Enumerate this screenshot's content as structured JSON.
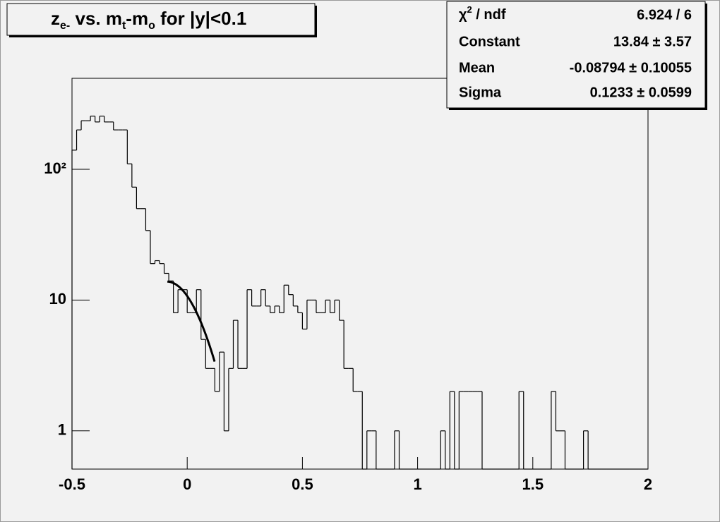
{
  "chart_data": {
    "type": "histogram",
    "title_parts": [
      {
        "text": "z"
      },
      {
        "text": "e-",
        "sub": true
      },
      {
        "text": " vs. m"
      },
      {
        "text": "t",
        "sub": true
      },
      {
        "text": "-m"
      },
      {
        "text": "o",
        "sub": true
      },
      {
        "text": " for |y|<0.1"
      }
    ],
    "bins": [
      -0.5,
      -0.48,
      -0.46,
      -0.44,
      -0.42,
      -0.4,
      -0.38,
      -0.36,
      -0.34,
      -0.32,
      -0.3,
      -0.28,
      -0.26,
      -0.24,
      -0.22,
      -0.2,
      -0.18,
      -0.16,
      -0.14,
      -0.12,
      -0.1,
      -0.08,
      -0.06,
      -0.04,
      -0.02,
      0,
      0.02,
      0.04,
      0.06,
      0.08,
      0.1,
      0.12,
      0.14,
      0.16,
      0.18,
      0.2,
      0.22,
      0.24,
      0.26,
      0.28,
      0.3,
      0.32,
      0.34,
      0.36,
      0.38,
      0.4,
      0.42,
      0.44,
      0.46,
      0.48,
      0.5,
      0.52,
      0.54,
      0.56,
      0.58,
      0.6,
      0.62,
      0.64,
      0.66,
      0.68,
      0.7,
      0.72,
      0.74,
      0.76,
      0.78,
      0.8,
      0.82,
      0.84,
      0.86,
      0.88,
      0.9,
      0.92,
      0.94,
      0.96,
      0.98,
      1,
      1.02,
      1.04,
      1.06,
      1.08,
      1.1,
      1.12,
      1.14,
      1.16,
      1.18,
      1.2,
      1.22,
      1.24,
      1.26,
      1.28,
      1.3,
      1.32,
      1.34,
      1.36,
      1.38,
      1.4,
      1.42,
      1.44,
      1.46,
      1.48,
      1.5,
      1.52,
      1.54,
      1.56,
      1.58,
      1.6,
      1.62,
      1.64,
      1.66,
      1.68,
      1.7,
      1.72,
      1.74,
      1.76,
      1.78,
      1.8,
      1.82,
      1.84,
      1.86,
      1.88,
      1.9,
      1.92,
      1.94,
      1.96,
      1.98,
      2
    ],
    "values": [
      140,
      200,
      235,
      235,
      255,
      230,
      255,
      230,
      230,
      200,
      200,
      200,
      110,
      73,
      50,
      50,
      34,
      19,
      20,
      19,
      16,
      14,
      8,
      12,
      12,
      8,
      8,
      12,
      5,
      3,
      3,
      2,
      4,
      1,
      3,
      7,
      3,
      3,
      12,
      9,
      9,
      12,
      9,
      8,
      9,
      8,
      13,
      11,
      9,
      8,
      6,
      10,
      10,
      8,
      8,
      10,
      8,
      10,
      7,
      3,
      3,
      2,
      2,
      0,
      1,
      1,
      0,
      0,
      0,
      0,
      1,
      0,
      0,
      0,
      0,
      0,
      0,
      0,
      0,
      0,
      1,
      0,
      2,
      0,
      2,
      2,
      2,
      2,
      2,
      0,
      0,
      0,
      0,
      0,
      0,
      0,
      0,
      2,
      0,
      0,
      0,
      0,
      0,
      0,
      2,
      1,
      1,
      0,
      0,
      0,
      0,
      1,
      0,
      0,
      0,
      0,
      0,
      0,
      0,
      0,
      0,
      0,
      0,
      0,
      0
    ],
    "color": "#000000",
    "xlim": [
      -0.5,
      2
    ],
    "xticks": [
      -0.5,
      0,
      0.5,
      1,
      1.5,
      2
    ],
    "ylim": [
      0.51,
      496
    ],
    "yticks": [
      1,
      10,
      {
        "value": 100,
        "label": "10²"
      }
    ],
    "log_y": true,
    "fit_range": [
      -0.086,
      0.119
    ],
    "fit_color": "#000000",
    "stats": [
      {
        "label_parts": [
          {
            "text": "χ"
          },
          {
            "text": "2",
            "sup": true
          },
          {
            "text": " / ndf"
          }
        ],
        "value_label": "6.924 / 6"
      },
      {
        "label": "Constant",
        "value": 13.84,
        "value_label": "13.84 ± 3.57"
      },
      {
        "label": "Mean",
        "value": -0.08794,
        "value_label": "-0.08794 ± 0.10055"
      },
      {
        "label": "Sigma",
        "value": 0.1233,
        "value_label": "0.1233 ± 0.0599"
      }
    ]
  }
}
